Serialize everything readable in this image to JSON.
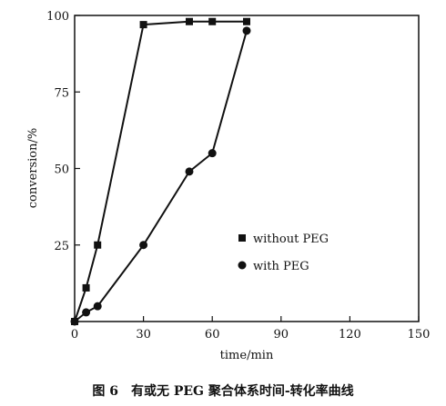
{
  "caption": "图 6　有或无 PEG 聚合体系时间-转化率曲线",
  "chart_data": {
    "type": "line",
    "xlabel": "time/min",
    "ylabel": "conversion/%",
    "xlim": [
      0,
      150
    ],
    "ylim": [
      0,
      100
    ],
    "x_ticks": [
      "0",
      "30",
      "60",
      "90",
      "120",
      "150"
    ],
    "y_ticks": [
      "25",
      "50",
      "75",
      "100"
    ],
    "grid": false,
    "legend_position": "lower-right",
    "series": [
      {
        "name": "without PEG",
        "marker": "square",
        "color": "#111111",
        "points": [
          [
            0,
            0
          ],
          [
            5,
            11
          ],
          [
            10,
            25
          ],
          [
            30,
            97
          ],
          [
            50,
            98
          ],
          [
            60,
            98
          ],
          [
            75,
            98
          ]
        ]
      },
      {
        "name": "with PEG",
        "marker": "circle",
        "color": "#111111",
        "points": [
          [
            0,
            0
          ],
          [
            5,
            3
          ],
          [
            10,
            5
          ],
          [
            30,
            25
          ],
          [
            50,
            49
          ],
          [
            60,
            55
          ],
          [
            75,
            95
          ]
        ]
      }
    ]
  }
}
